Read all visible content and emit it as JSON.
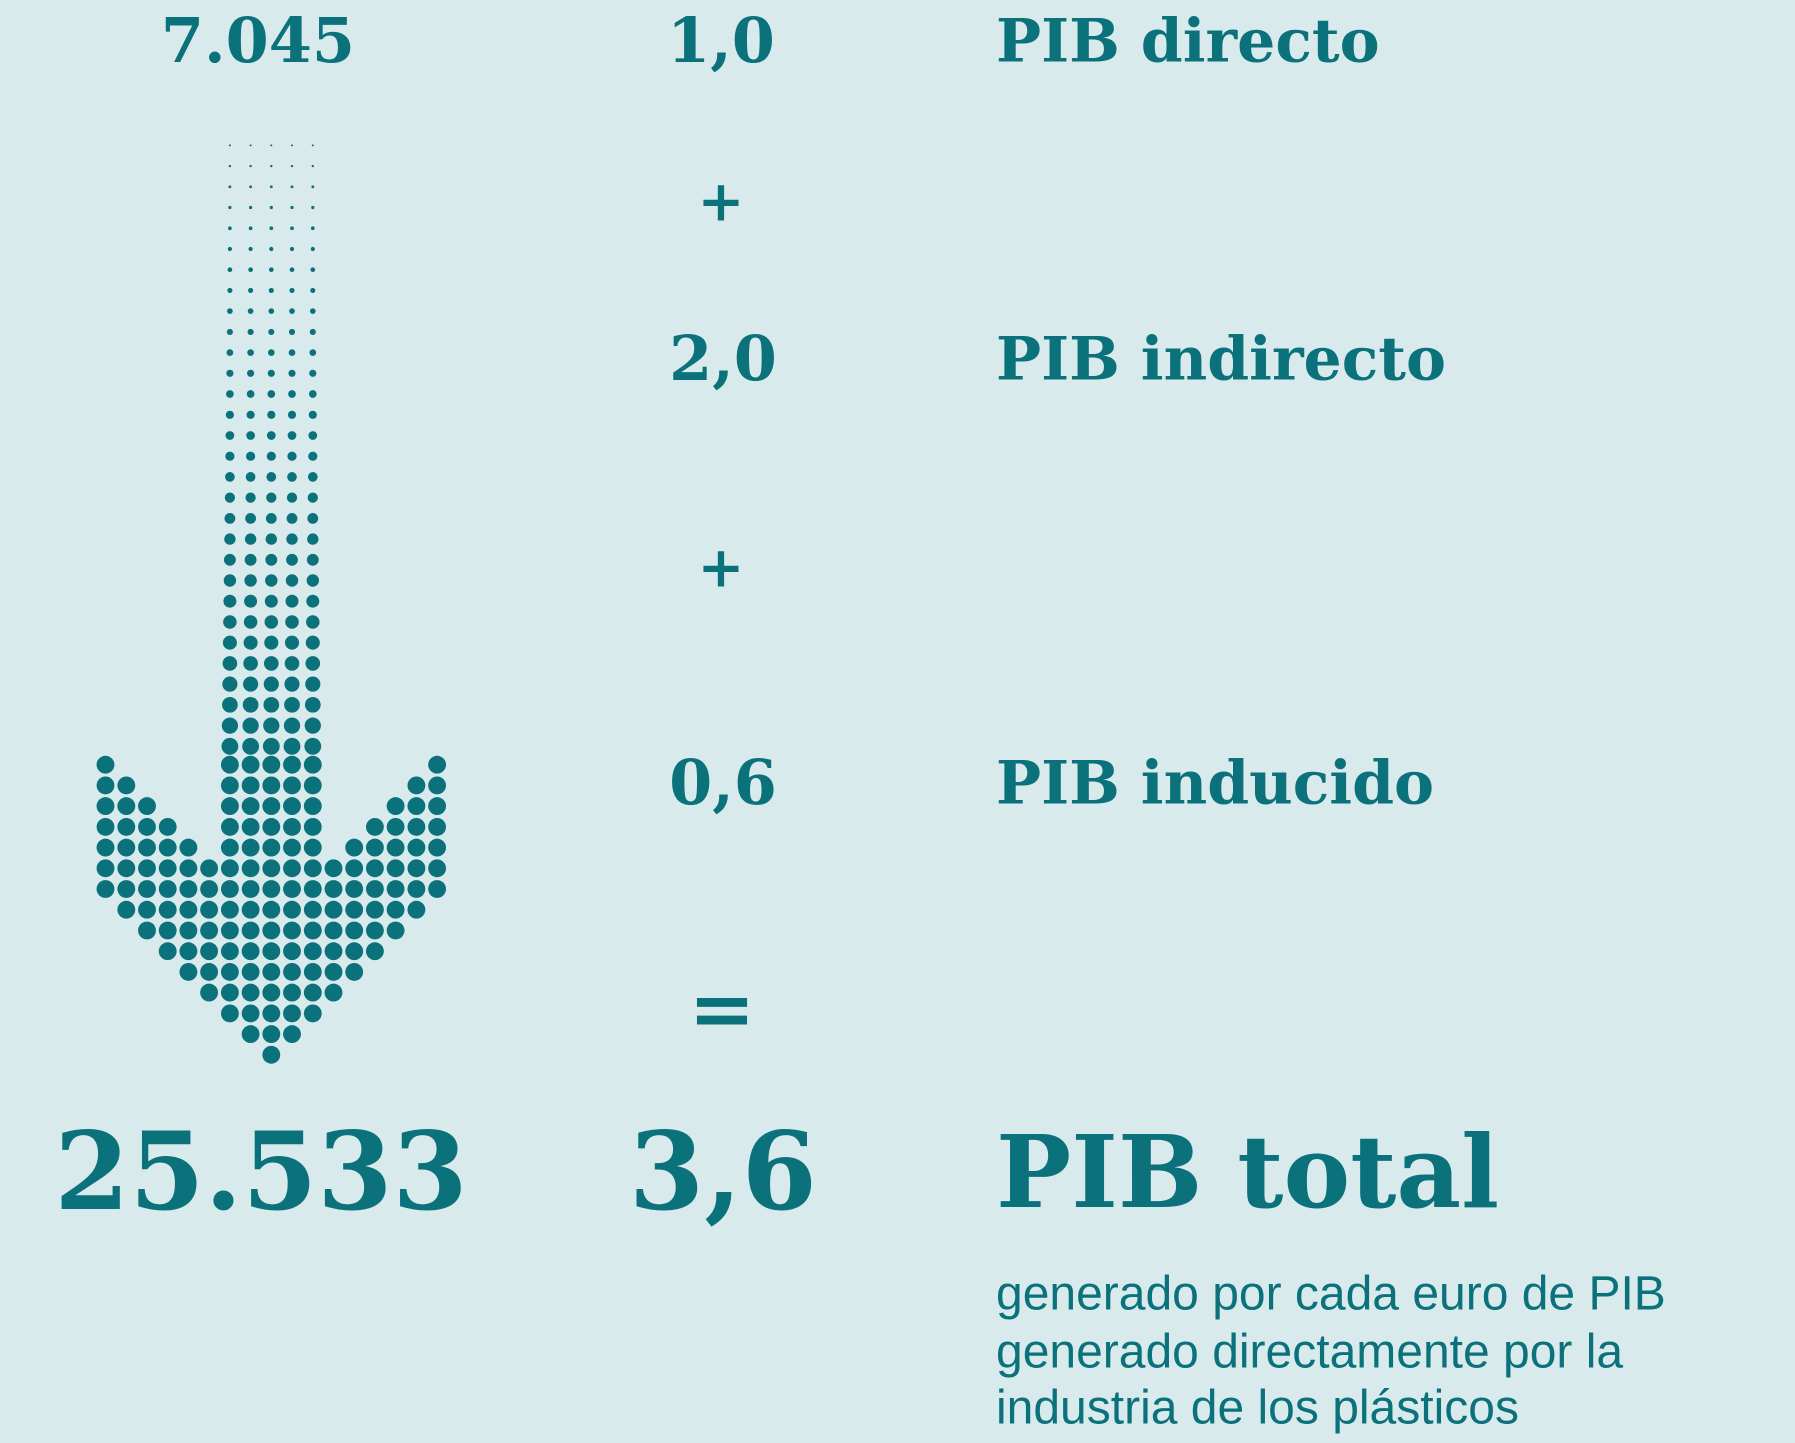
{
  "left_column": {
    "start": "7.045",
    "end": "25.533"
  },
  "rows": [
    {
      "value": "1,0",
      "label": "PIB directo"
    },
    {
      "value": "2,0",
      "label": "PIB indirecto"
    },
    {
      "value": "0,6",
      "label": "PIB inducido"
    }
  ],
  "operators": [
    "+",
    "+",
    "="
  ],
  "total": {
    "value": "3,6",
    "label": "PIB total",
    "note": [
      "generado por cada euro de PIB",
      "generado directamente por la",
      "industria de los plásticos"
    ]
  }
}
